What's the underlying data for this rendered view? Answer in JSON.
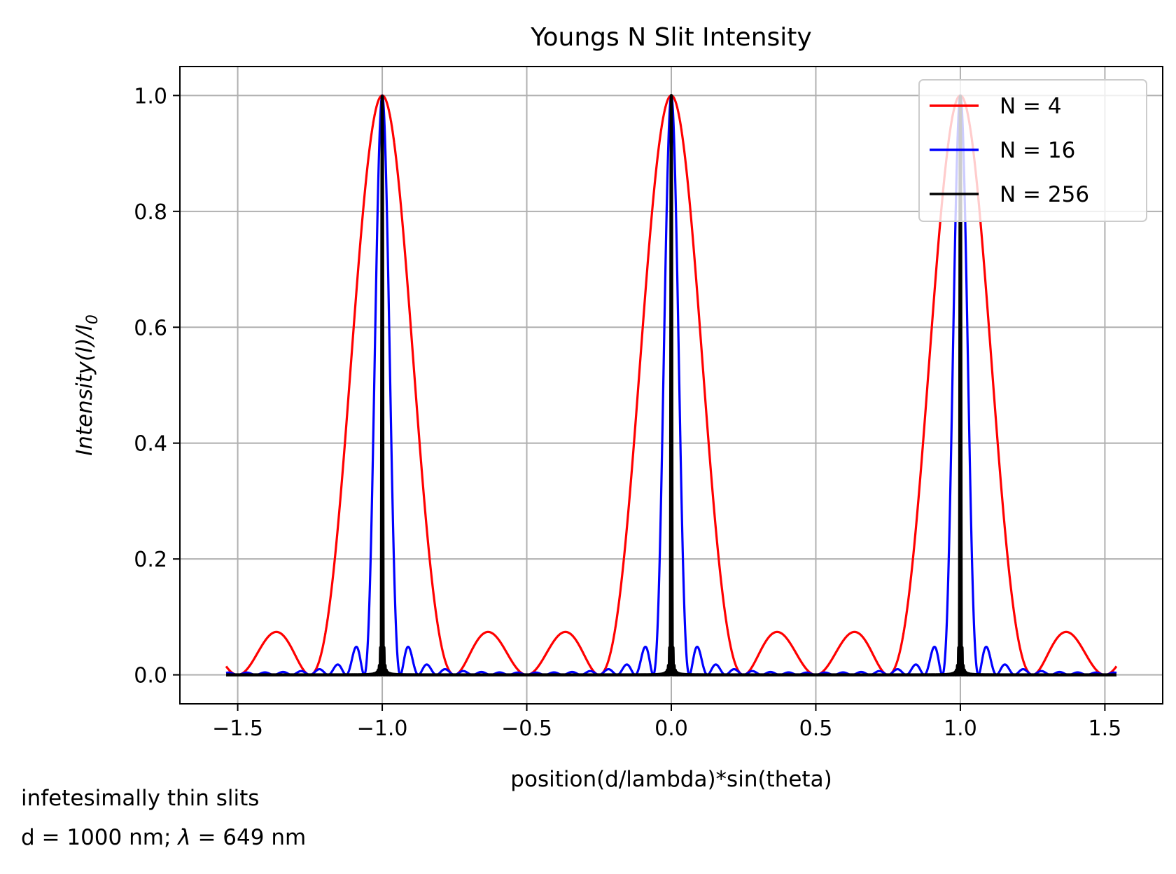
{
  "chart_data": {
    "type": "line",
    "title": "Youngs N Slit Intensity",
    "xlabel": "position(d/lambda)*sin(theta)",
    "ylabel": "Intensity(I)/I",
    "ylabel_subscript": "0",
    "xlim": [
      -1.7,
      1.7
    ],
    "ylim": [
      -0.05,
      1.05
    ],
    "x_range": [
      -1.54,
      1.54
    ],
    "xticks": [
      -1.5,
      -1.0,
      -0.5,
      0.0,
      0.5,
      1.0,
      1.5
    ],
    "xtick_labels": [
      "−1.5",
      "−1.0",
      "−0.5",
      "0.0",
      "0.5",
      "1.0",
      "1.5"
    ],
    "yticks": [
      0.0,
      0.2,
      0.4,
      0.6,
      0.8,
      1.0
    ],
    "ytick_labels": [
      "0.0",
      "0.2",
      "0.4",
      "0.6",
      "0.8",
      "1.0"
    ],
    "grid": true,
    "legend_position": "top-right",
    "function": "I/I0 = [sin(N*pi*x) / (N*sin(pi*x))]^2",
    "series": [
      {
        "name": "N = 4",
        "N": 4,
        "color": "#ff0000"
      },
      {
        "name": "N = 16",
        "N": 16,
        "color": "#0000ff"
      },
      {
        "name": "N = 256",
        "N": 256,
        "color": "#000000"
      }
    ]
  },
  "notes": {
    "line1": "infetesimally thin slits",
    "line2_prefix": "d = 1000 nm; ",
    "line2_lambda": "λ",
    "line2_suffix": " = 649 nm"
  }
}
